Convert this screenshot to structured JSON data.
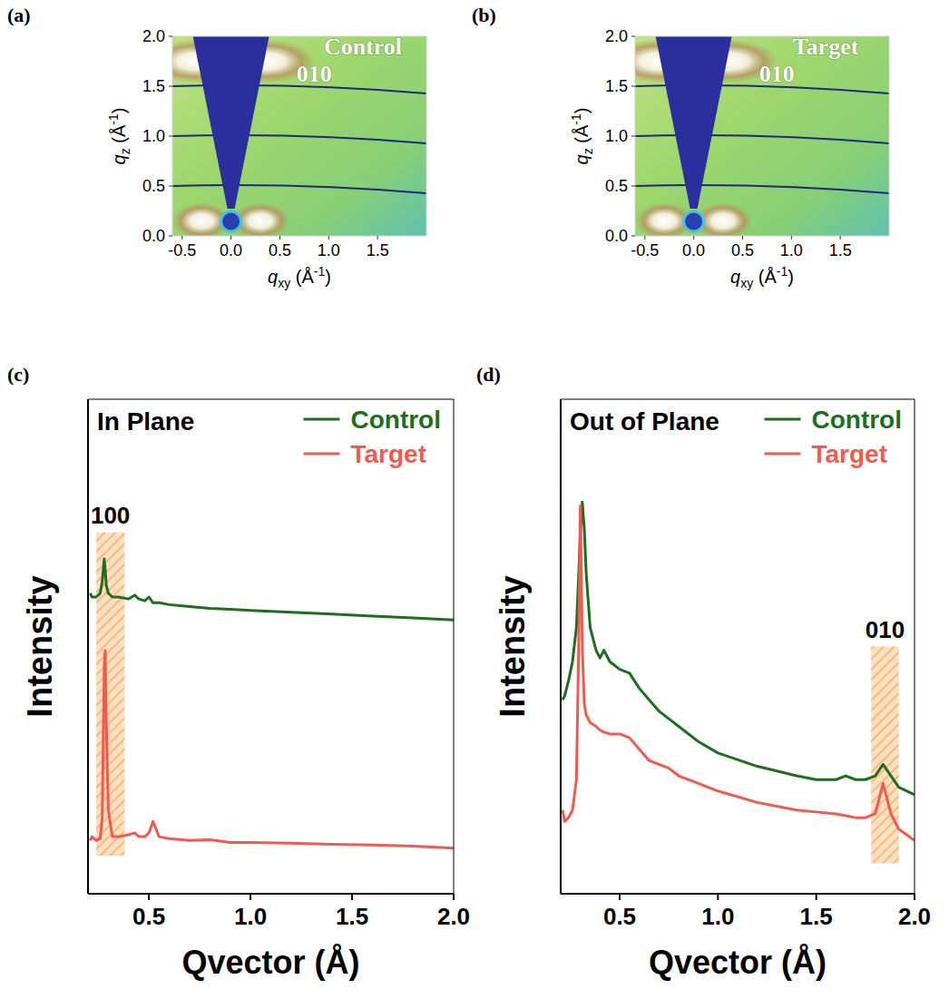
{
  "chart_data": [
    {
      "type": "image_map",
      "panel_label": "(a)",
      "xlabel": "qxy (Å-1)",
      "ylabel": "qz (Å-1)",
      "xlim": [
        -0.6,
        2.0
      ],
      "ylim": [
        0,
        2.0
      ],
      "xticks": [
        -0.5,
        {
          "value": 0,
          "label": "0.0"
        },
        0.5,
        {
          "value": 1,
          "label": "1.0"
        },
        1.5
      ],
      "yticks": [
        {
          "value": 0,
          "label": "0.0"
        },
        0.5,
        {
          "value": 1,
          "label": "1.0"
        },
        1.5,
        {
          "value": 2,
          "label": "2.0"
        }
      ],
      "grid": true,
      "annotations": [
        {
          "text": "Control",
          "x": 1.35,
          "y": 1.82
        },
        {
          "text": "010",
          "x": 0.85,
          "y": 1.55
        }
      ],
      "peaks": {
        "x": [
          -0.35,
          0.35,
          -0.3,
          0.3
        ],
        "y": [
          1.75,
          1.75,
          0.15,
          0.15
        ]
      }
    },
    {
      "type": "image_map",
      "panel_label": "(b)",
      "xlabel": "qxy (Å-1)",
      "ylabel": "qz (Å-1)",
      "xlim": [
        -0.6,
        2.0
      ],
      "ylim": [
        0,
        2.0
      ],
      "xticks": [
        -0.5,
        {
          "value": 0,
          "label": "0.0"
        },
        0.5,
        {
          "value": 1,
          "label": "1.0"
        },
        1.5
      ],
      "yticks": [
        {
          "value": 0,
          "label": "0.0"
        },
        0.5,
        {
          "value": 1,
          "label": "1.0"
        },
        1.5,
        {
          "value": 2,
          "label": "2.0"
        }
      ],
      "grid": true,
      "annotations": [
        {
          "text": "Target",
          "x": 1.35,
          "y": 1.82
        },
        {
          "text": "010",
          "x": 0.85,
          "y": 1.55
        }
      ],
      "peaks": {
        "x": [
          -0.35,
          0.35,
          -0.3,
          0.3
        ],
        "y": [
          1.75,
          1.75,
          0.15,
          0.15
        ]
      }
    },
    {
      "type": "line",
      "panel_label": "(c)",
      "title": "In Plane",
      "xlabel": "Qvector (Å)",
      "ylabel": "Intensity",
      "xlim": [
        0.2,
        2.0
      ],
      "ylim": [
        0,
        130
      ],
      "xticks": [
        0.5,
        {
          "value": 1,
          "label": "1.0"
        },
        1.5,
        {
          "value": 2,
          "label": "2.0"
        }
      ],
      "tick_labels": "x",
      "legend": "upper right",
      "x": [
        0.21,
        0.22,
        0.24,
        0.26,
        0.27,
        0.275,
        0.28,
        0.285,
        0.29,
        0.3,
        0.32,
        0.35,
        0.4,
        0.43,
        0.45,
        0.48,
        0.5,
        0.52,
        0.55,
        0.6,
        0.7,
        0.8,
        0.9,
        1.0,
        1.2,
        1.4,
        1.6,
        1.8,
        2.0
      ],
      "series": [
        {
          "name": "Control",
          "color": "#1f6e1f",
          "values": [
            79,
            78,
            78,
            79,
            82,
            85,
            88,
            85,
            81,
            79,
            78,
            78,
            77.5,
            78.5,
            77.5,
            77,
            78,
            76.5,
            76.5,
            76,
            75.5,
            75,
            74.8,
            74.5,
            74,
            73.5,
            73,
            72.5,
            72
          ]
        },
        {
          "name": "Target",
          "color": "#f05a50",
          "values": [
            14,
            15,
            14,
            14.5,
            20,
            40,
            60,
            64,
            45,
            22,
            15,
            15,
            15.5,
            16,
            15,
            15,
            16,
            19,
            15,
            14.5,
            14,
            14.2,
            13.5,
            13.5,
            13.3,
            13,
            12.8,
            12.5,
            12
          ]
        }
      ],
      "bands": [
        {
          "label": "100",
          "x": [
            0.24,
            0.38
          ],
          "y": [
            10,
            95
          ]
        }
      ]
    },
    {
      "type": "line",
      "panel_label": "(d)",
      "title": "Out of Plane",
      "xlabel": "Qvector (Å)",
      "ylabel": "Intensity",
      "xlim": [
        0.2,
        2.0
      ],
      "ylim": [
        0,
        130
      ],
      "xticks": [
        0.5,
        {
          "value": 1,
          "label": "1.0"
        },
        1.5,
        {
          "value": 2,
          "label": "2.0"
        }
      ],
      "tick_labels": "x",
      "legend": "upper right",
      "x": [
        0.21,
        0.22,
        0.24,
        0.26,
        0.28,
        0.29,
        0.3,
        0.31,
        0.32,
        0.33,
        0.35,
        0.38,
        0.4,
        0.42,
        0.45,
        0.5,
        0.55,
        0.6,
        0.65,
        0.7,
        0.75,
        0.8,
        0.9,
        1.0,
        1.2,
        1.4,
        1.5,
        1.6,
        1.65,
        1.7,
        1.75,
        1.8,
        1.84,
        1.88,
        1.92,
        2.0
      ],
      "series": [
        {
          "name": "Control",
          "color": "#1f6e1f",
          "values": [
            51,
            52,
            56,
            61,
            70,
            82,
            95,
            103,
            96,
            84,
            70,
            64,
            62,
            64,
            61,
            59,
            58,
            54,
            51,
            48,
            46,
            44,
            40,
            37,
            33.5,
            31,
            30,
            30,
            31,
            30,
            30,
            31,
            34,
            31,
            28,
            26
          ]
        },
        {
          "name": "Target",
          "color": "#f05a50",
          "values": [
            22,
            19,
            20,
            22,
            30,
            60,
            102,
            65,
            50,
            47,
            45,
            44,
            43,
            42.5,
            42,
            42,
            41,
            38,
            35,
            34,
            33,
            31,
            29,
            27,
            24,
            22,
            21.5,
            21,
            20.5,
            20,
            20,
            21,
            29,
            21,
            17,
            14
          ]
        }
      ],
      "bands": [
        {
          "label": "010",
          "x": [
            1.78,
            1.92
          ],
          "y": [
            8,
            65
          ]
        }
      ]
    }
  ]
}
